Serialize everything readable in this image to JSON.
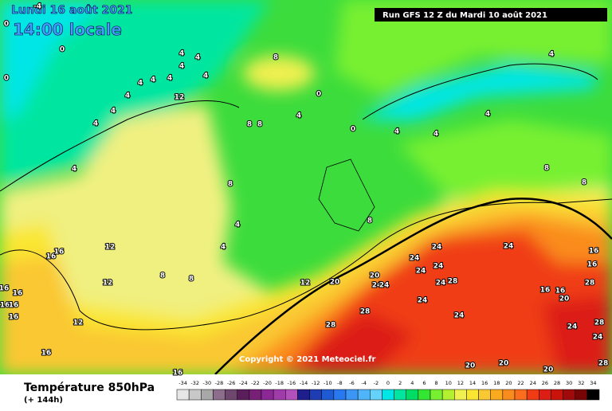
{
  "header": {
    "date": "Lundi 16 août 2021",
    "time": "14:00 locale",
    "run": "Run GFS 12 Z du Mardi 10 août 2021"
  },
  "copyright": "Copyright © 2021 Meteociel.fr",
  "footer": {
    "title": "Température 850hPa",
    "lead": "(+ 144h)"
  },
  "contour_labels": [
    -4,
    0,
    0,
    0,
    4,
    4,
    4,
    4,
    4,
    4,
    4,
    4,
    4,
    4,
    8,
    0,
    0,
    4,
    4,
    4,
    4,
    4,
    8,
    8,
    12,
    4,
    8,
    4,
    4,
    8,
    8,
    12,
    12,
    12,
    16,
    16,
    16,
    16,
    16,
    16,
    16,
    16,
    16,
    12,
    20,
    20,
    24,
    24,
    24,
    24,
    24,
    24,
    24,
    28,
    24,
    24,
    24,
    28,
    28,
    20,
    20,
    20,
    16,
    16,
    28,
    16,
    16,
    20,
    24,
    28,
    24,
    28,
    8,
    8,
    8
  ],
  "legend": {
    "ticks": [
      -34,
      -32,
      -30,
      -28,
      -26,
      -24,
      -22,
      -20,
      -18,
      -16,
      -14,
      -12,
      -10,
      -8,
      -6,
      -4,
      -2,
      0,
      2,
      4,
      6,
      8,
      10,
      12,
      14,
      16,
      18,
      20,
      22,
      24,
      26,
      28,
      30,
      32,
      34
    ],
    "colors": [
      "#e6e6e6",
      "#c8c8c8",
      "#a8a8a8",
      "#8c6e8c",
      "#6e466e",
      "#5a1e5a",
      "#782078",
      "#8c2896",
      "#a03caa",
      "#b450be",
      "#1e1e8c",
      "#1e3cb4",
      "#1e5ad2",
      "#2878f0",
      "#3c96f5",
      "#50b4fa",
      "#64d2fa",
      "#00e6e6",
      "#00e6a0",
      "#00dc64",
      "#32e632",
      "#78f032",
      "#b4f032",
      "#f0f050",
      "#fae632",
      "#fac832",
      "#faaa1e",
      "#fa8c1e",
      "#fa6e1e",
      "#f03c14",
      "#dc1e14",
      "#c8140a",
      "#a00a0a",
      "#780505",
      "#000000"
    ]
  }
}
